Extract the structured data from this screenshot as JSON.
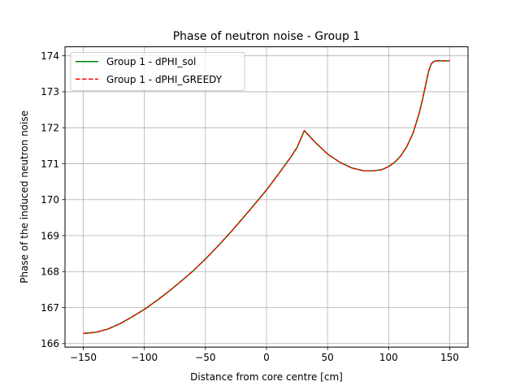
{
  "chart_data": {
    "type": "line",
    "title": "Phase of neutron noise - Group 1",
    "xlabel": "Distance from core centre [cm]",
    "ylabel": "Phase of the induced neutron noise",
    "xlim": [
      -165,
      165
    ],
    "ylim": [
      165.9,
      174.25
    ],
    "xticks": [
      -150,
      -100,
      -50,
      0,
      50,
      100,
      150
    ],
    "xtick_labels": [
      "−150",
      "−100",
      "−50",
      "0",
      "50",
      "100",
      "150"
    ],
    "yticks": [
      166,
      167,
      168,
      169,
      170,
      171,
      172,
      173,
      174
    ],
    "ytick_labels": [
      "166",
      "167",
      "168",
      "169",
      "170",
      "171",
      "172",
      "173",
      "174"
    ],
    "grid": true,
    "legend_position": "upper-left",
    "x": [
      -150,
      -140,
      -130,
      -120,
      -110,
      -100,
      -90,
      -80,
      -70,
      -60,
      -50,
      -40,
      -30,
      -20,
      -10,
      0,
      10,
      20,
      25,
      31,
      40,
      50,
      60,
      70,
      80,
      88,
      95,
      100,
      105,
      110,
      115,
      120,
      125,
      128,
      131,
      133,
      135,
      137,
      139,
      142,
      145,
      150
    ],
    "series": [
      {
        "name": "Group 1 - dPHI_sol",
        "color": "#008000",
        "linestyle": "solid",
        "values": [
          166.28,
          166.31,
          166.4,
          166.55,
          166.74,
          166.95,
          167.19,
          167.45,
          167.73,
          168.02,
          168.35,
          168.7,
          169.07,
          169.46,
          169.86,
          170.27,
          170.72,
          171.19,
          171.45,
          171.92,
          171.59,
          171.27,
          171.04,
          170.88,
          170.8,
          170.8,
          170.84,
          170.92,
          171.04,
          171.22,
          171.48,
          171.85,
          172.4,
          172.82,
          173.3,
          173.6,
          173.78,
          173.84,
          173.86,
          173.86,
          173.86,
          173.86
        ]
      },
      {
        "name": "Group 1 - dPHI_GREEDY",
        "color": "#ff0000",
        "linestyle": "dashed",
        "values": [
          166.28,
          166.31,
          166.4,
          166.55,
          166.74,
          166.95,
          167.19,
          167.45,
          167.73,
          168.02,
          168.35,
          168.7,
          169.07,
          169.46,
          169.86,
          170.27,
          170.72,
          171.19,
          171.45,
          171.92,
          171.59,
          171.27,
          171.04,
          170.88,
          170.8,
          170.8,
          170.84,
          170.92,
          171.04,
          171.22,
          171.48,
          171.85,
          172.4,
          172.82,
          173.3,
          173.6,
          173.78,
          173.84,
          173.86,
          173.86,
          173.86,
          173.86
        ]
      }
    ]
  }
}
